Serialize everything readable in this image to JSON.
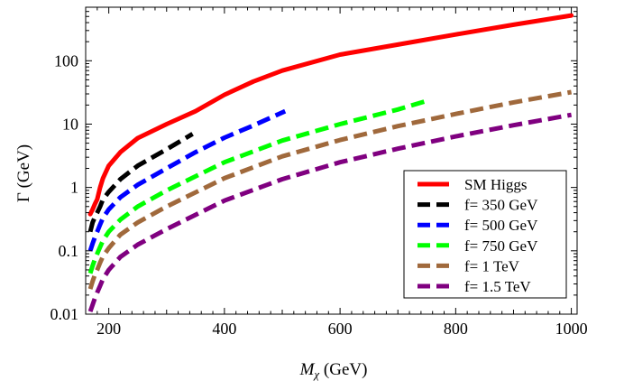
{
  "chart_data": {
    "type": "line",
    "title": "",
    "xlabel": "M_χ (GeV)",
    "xlabel_main": "M",
    "xlabel_sub": "χ",
    "xlabel_unit": " (GeV)",
    "ylabel": "Γ (GeV)",
    "yscale": "log",
    "xlim": [
      160,
      1010
    ],
    "ylim": [
      0.01,
      700
    ],
    "xticks": [
      200,
      400,
      600,
      800,
      1000
    ],
    "xtick_labels": [
      "200",
      "400",
      "600",
      "800",
      "1000"
    ],
    "yticks": [
      0.01,
      0.1,
      1,
      10,
      100
    ],
    "ytick_labels": [
      "0.01",
      "0.1",
      "1",
      "10",
      "100"
    ],
    "legend_position": "bottom-right",
    "series": [
      {
        "name": "SM Higgs",
        "color": "#ff0000",
        "style": "solid",
        "x": [
          168,
          172,
          176,
          180,
          185,
          190,
          200,
          220,
          250,
          300,
          350,
          400,
          450,
          500,
          600,
          700,
          800,
          900,
          1000
        ],
        "y": [
          0.38,
          0.45,
          0.55,
          0.65,
          1.0,
          1.4,
          2.2,
          3.6,
          6.0,
          10.0,
          16.0,
          29.0,
          47.0,
          70.0,
          125.0,
          180.0,
          260.0,
          370.0,
          520.0
        ]
      },
      {
        "name": "f= 350 GeV",
        "color": "#000000",
        "style": "dashed",
        "x": [
          168,
          172,
          176,
          180,
          185,
          190,
          200,
          220,
          250,
          300,
          345
        ],
        "y": [
          0.2,
          0.28,
          0.34,
          0.4,
          0.5,
          0.65,
          0.85,
          1.35,
          2.2,
          4.0,
          7.0
        ]
      },
      {
        "name": "f= 500 GeV",
        "color": "#0000ff",
        "style": "dashed",
        "x": [
          168,
          172,
          176,
          180,
          185,
          190,
          200,
          220,
          250,
          300,
          350,
          400,
          450,
          505
        ],
        "y": [
          0.1,
          0.13,
          0.165,
          0.2,
          0.26,
          0.33,
          0.45,
          0.7,
          1.1,
          2.0,
          3.6,
          6.1,
          9.5,
          16.0
        ]
      },
      {
        "name": "f= 750 GeV",
        "color": "#00ff00",
        "style": "dashed",
        "x": [
          168,
          172,
          176,
          180,
          185,
          190,
          200,
          220,
          250,
          300,
          400,
          500,
          600,
          700,
          755
        ],
        "y": [
          0.044,
          0.058,
          0.074,
          0.09,
          0.115,
          0.145,
          0.2,
          0.31,
          0.5,
          0.9,
          2.5,
          5.5,
          10.0,
          17.0,
          24.0
        ]
      },
      {
        "name": "f= 1 TeV",
        "color": "#a0693c",
        "style": "dashed",
        "x": [
          168,
          172,
          176,
          180,
          185,
          190,
          200,
          220,
          250,
          300,
          400,
          500,
          600,
          700,
          800,
          900,
          1000
        ],
        "y": [
          0.025,
          0.033,
          0.042,
          0.05,
          0.065,
          0.082,
          0.11,
          0.18,
          0.28,
          0.5,
          1.4,
          3.1,
          5.6,
          9.3,
          14.5,
          22.0,
          32.0
        ]
      },
      {
        "name": "f= 1.5 TeV",
        "color": "#800080",
        "style": "dashed",
        "x": [
          168,
          172,
          176,
          180,
          185,
          190,
          200,
          220,
          250,
          300,
          400,
          500,
          600,
          700,
          800,
          900,
          1000
        ],
        "y": [
          0.011,
          0.014,
          0.018,
          0.022,
          0.028,
          0.036,
          0.05,
          0.08,
          0.125,
          0.22,
          0.62,
          1.35,
          2.5,
          4.1,
          6.4,
          9.6,
          14.0
        ]
      }
    ]
  }
}
